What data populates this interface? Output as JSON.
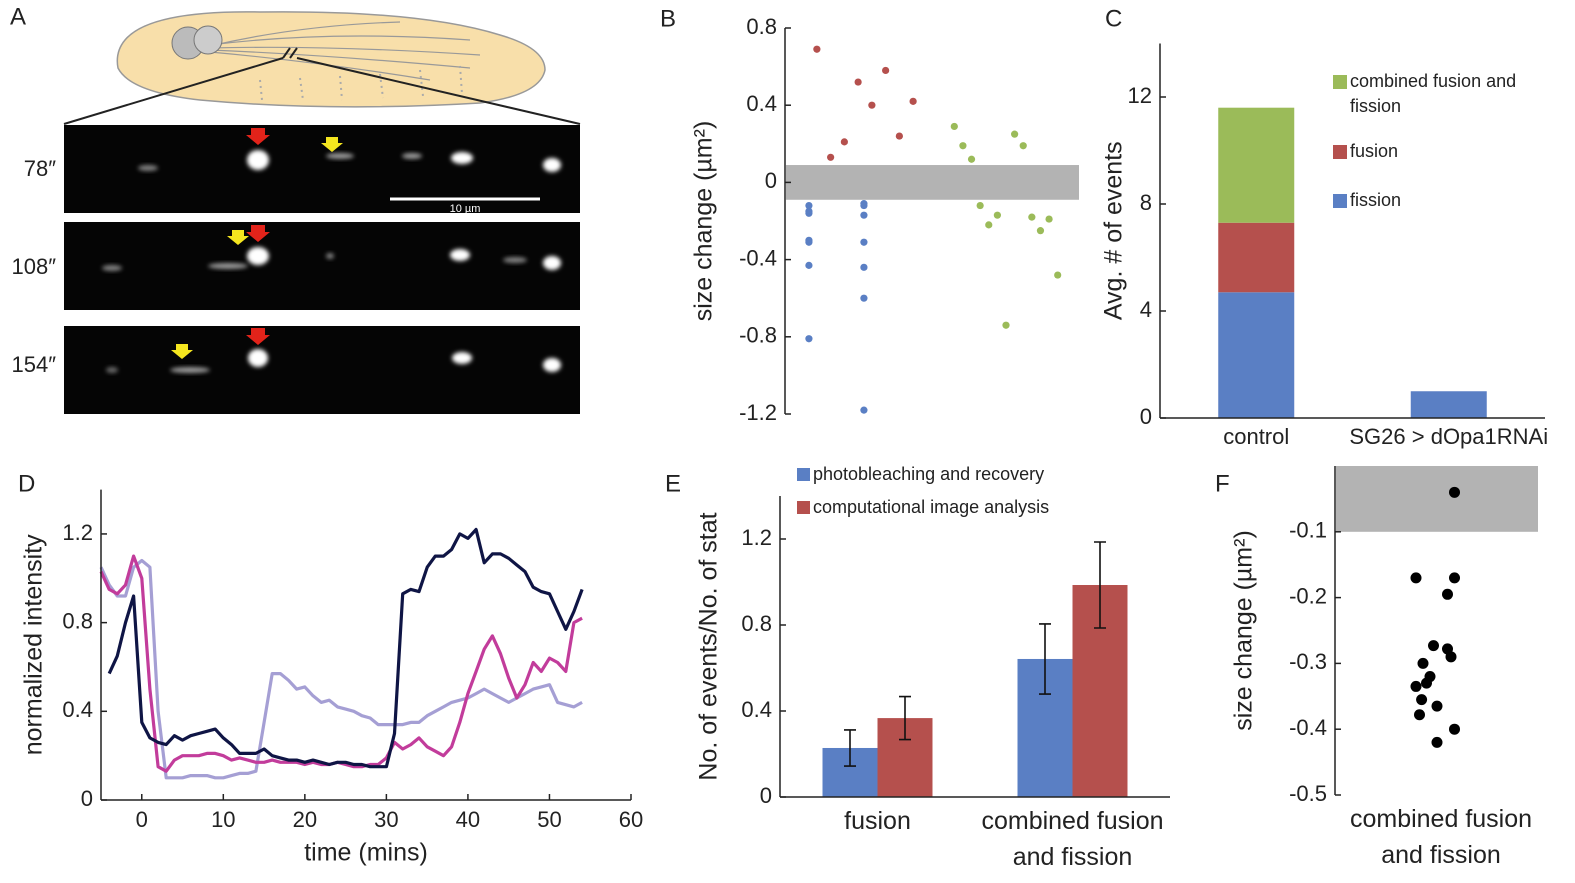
{
  "panel_a": {
    "label": "A",
    "times": [
      "78″",
      "108″",
      "154″"
    ],
    "scale_bar": "10 µm"
  },
  "chart_data": [
    {
      "label": "B",
      "type": "scatter",
      "ylabel": "size change  (µm²)",
      "ylim": [
        -1.2,
        0.8
      ],
      "yticks": [
        0.8,
        0.4,
        0,
        -0.4,
        -0.8,
        -1.2
      ],
      "band": [
        -0.09,
        0.09
      ],
      "band_color": "#b3b3b3",
      "series": [
        {
          "color": "#b5504d",
          "values": [
            0.69,
            0.42,
            0.24,
            0.58,
            0.4,
            0.52,
            0.21,
            0.13
          ]
        },
        {
          "color": "#5a7fc4",
          "values": [
            -0.15,
            -0.31,
            -0.3,
            -0.44,
            -0.43,
            -0.6,
            -0.81,
            -0.12,
            -0.16,
            -0.11,
            -0.12,
            -0.17,
            -0.31,
            -1.18
          ]
        },
        {
          "color": "#9bbb59",
          "values": [
            0.29,
            0.25,
            0.19,
            0.19,
            0.12,
            -0.18,
            -0.12,
            -0.25,
            -0.22,
            -0.19,
            -0.17,
            -0.48,
            -0.74
          ]
        }
      ]
    },
    {
      "label": "C",
      "type": "stacked_bar",
      "ylabel": "Avg. # of events",
      "ylim": [
        0,
        14
      ],
      "yticks": [
        0,
        4,
        8,
        12
      ],
      "categories": [
        "control",
        "SG26 > dOpa1RNAi"
      ],
      "series": [
        {
          "name": "fission",
          "color": "#5a7fc4",
          "values": [
            4.7,
            1.0
          ]
        },
        {
          "name": "fusion",
          "color": "#b5504d",
          "values": [
            2.6,
            0
          ]
        },
        {
          "name": "combined fusion and fission",
          "color": "#9bbb59",
          "values": [
            4.3,
            0
          ]
        }
      ]
    },
    {
      "label": "D",
      "type": "line",
      "xlabel": "time (mins)",
      "ylabel": "normalized intensity",
      "xlim": [
        -5,
        60
      ],
      "xticks": [
        0,
        10,
        20,
        30,
        40,
        50,
        60
      ],
      "ylim": [
        0,
        1.4
      ],
      "yticks": [
        0,
        0.4,
        0.8,
        1.2
      ],
      "x": [
        -5,
        -4,
        -3,
        -2,
        -1,
        0,
        1,
        2,
        3,
        4,
        5,
        6,
        7,
        8,
        9,
        10,
        11,
        12,
        13,
        14,
        15,
        16,
        17,
        18,
        19,
        20,
        21,
        22,
        23,
        24,
        25,
        26,
        27,
        28,
        29,
        30,
        31,
        32,
        33,
        34,
        35,
        36,
        37,
        38,
        39,
        40,
        41,
        42,
        43,
        44,
        45,
        46,
        47,
        48,
        49,
        50,
        51,
        52,
        53,
        54
      ],
      "series": [
        {
          "color": "#a59fd4",
          "values": [
            1.05,
            0.97,
            0.92,
            0.92,
            1.05,
            1.08,
            1.05,
            0.4,
            0.1,
            0.1,
            0.1,
            0.11,
            0.11,
            0.11,
            0.1,
            0.1,
            0.11,
            0.12,
            0.12,
            0.13,
            0.35,
            0.57,
            0.57,
            0.54,
            0.5,
            0.51,
            0.47,
            0.44,
            0.45,
            0.42,
            0.41,
            0.4,
            0.38,
            0.37,
            0.34,
            0.34,
            0.34,
            0.34,
            0.35,
            0.35,
            0.38,
            0.4,
            0.42,
            0.44,
            0.45,
            0.46,
            0.48,
            0.5,
            0.48,
            0.46,
            0.44,
            0.46,
            0.48,
            0.5,
            0.51,
            0.52,
            0.44,
            0.43,
            0.42,
            0.44
          ]
        },
        {
          "color": "#c23c9b",
          "values": [
            1.03,
            0.95,
            0.93,
            0.97,
            1.1,
            1.0,
            0.5,
            0.15,
            0.13,
            0.18,
            0.2,
            0.2,
            0.2,
            0.21,
            0.21,
            0.2,
            0.18,
            0.19,
            0.18,
            0.17,
            0.17,
            0.18,
            0.17,
            0.17,
            0.17,
            0.16,
            0.17,
            0.16,
            0.16,
            0.17,
            0.16,
            0.15,
            0.15,
            0.16,
            0.16,
            0.19,
            0.26,
            0.23,
            0.25,
            0.28,
            0.24,
            0.22,
            0.2,
            0.24,
            0.35,
            0.48,
            0.58,
            0.68,
            0.74,
            0.66,
            0.55,
            0.46,
            0.52,
            0.62,
            0.58,
            0.64,
            0.62,
            0.58,
            0.8,
            0.82
          ]
        },
        {
          "color": "#0f1545",
          "values": [
            null,
            0.57,
            0.65,
            0.8,
            0.92,
            0.35,
            0.28,
            0.26,
            0.25,
            0.29,
            0.27,
            0.29,
            0.3,
            0.31,
            0.32,
            0.28,
            0.25,
            0.21,
            0.21,
            0.21,
            0.23,
            0.2,
            0.19,
            0.18,
            0.18,
            0.17,
            0.18,
            0.17,
            0.16,
            0.17,
            0.17,
            0.16,
            0.16,
            0.15,
            0.15,
            0.15,
            0.3,
            0.93,
            0.95,
            0.94,
            1.05,
            1.1,
            1.1,
            1.13,
            1.2,
            1.18,
            1.22,
            1.07,
            1.11,
            1.11,
            1.09,
            1.06,
            1.03,
            0.96,
            0.94,
            0.93,
            0.85,
            0.77,
            0.85,
            0.95
          ]
        }
      ]
    },
    {
      "label": "E",
      "type": "bar",
      "ylabel": "No. of events/No. of stat",
      "ylim": [
        0,
        1.4
      ],
      "yticks": [
        0,
        0.4,
        0.8,
        1.2
      ],
      "categories": [
        "fusion",
        "combined fusion and fission"
      ],
      "series": [
        {
          "name": "photobleaching and recovery",
          "color": "#5a7fc4",
          "values": [
            0.228,
            0.642
          ],
          "errors": [
            0.084,
            0.163
          ]
        },
        {
          "name": "computational image analysis",
          "color": "#b5504d",
          "values": [
            0.367,
            0.986
          ],
          "errors": [
            0.1,
            0.2
          ]
        }
      ]
    },
    {
      "label": "F",
      "type": "strip",
      "ylabel": "size change  (µm²)",
      "ylim": [
        -0.5,
        0
      ],
      "yticks": [
        -0.1,
        -0.2,
        -0.3,
        -0.4,
        -0.5
      ],
      "band": [
        -0.1,
        0
      ],
      "band_color": "#b3b3b3",
      "categories": [
        "combined fusion and fission"
      ],
      "color": "#000000",
      "values": [
        -0.04,
        -0.17,
        -0.17,
        -0.195,
        -0.273,
        -0.278,
        -0.3,
        -0.29,
        -0.32,
        -0.33,
        -0.335,
        -0.355,
        -0.365,
        -0.378,
        -0.4,
        -0.42
      ]
    }
  ]
}
